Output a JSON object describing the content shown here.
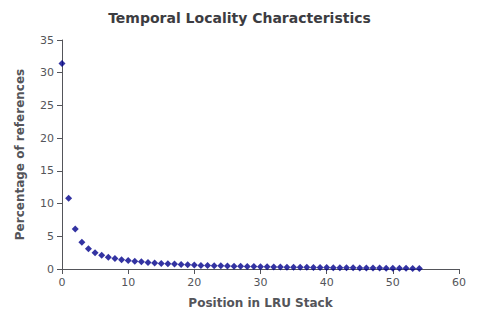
{
  "chart_data": {
    "type": "scatter",
    "title": "Temporal Locality Characteristics",
    "xlabel": "Position in LRU Stack",
    "ylabel": "Percentage of references",
    "x": [
      0,
      1,
      2,
      3,
      4,
      5,
      6,
      7,
      8,
      9,
      10,
      11,
      12,
      13,
      14,
      15,
      16,
      17,
      18,
      19,
      20,
      21,
      22,
      23,
      24,
      25,
      26,
      27,
      28,
      29,
      30,
      31,
      32,
      33,
      34,
      35,
      36,
      37,
      38,
      39,
      40,
      41,
      42,
      43,
      44,
      45,
      46,
      47,
      48,
      49,
      50,
      51,
      52,
      53,
      54
    ],
    "values": [
      31.4,
      10.8,
      6.1,
      4.1,
      3.1,
      2.5,
      2.1,
      1.8,
      1.6,
      1.4,
      1.3,
      1.2,
      1.1,
      1.0,
      0.9,
      0.85,
      0.8,
      0.75,
      0.7,
      0.65,
      0.6,
      0.55,
      0.52,
      0.5,
      0.48,
      0.45,
      0.43,
      0.41,
      0.39,
      0.37,
      0.35,
      0.33,
      0.31,
      0.3,
      0.28,
      0.27,
      0.26,
      0.25,
      0.24,
      0.23,
      0.22,
      0.21,
      0.2,
      0.19,
      0.18,
      0.17,
      0.16,
      0.15,
      0.14,
      0.13,
      0.12,
      0.11,
      0.1,
      0.09,
      0.08
    ],
    "color": "#00008B",
    "marker": "diamond",
    "xlim": [
      0,
      60
    ],
    "ylim": [
      0,
      35
    ],
    "xticks": [
      0,
      10,
      20,
      30,
      40,
      50,
      60
    ],
    "yticks": [
      0,
      5,
      10,
      15,
      20,
      25,
      30,
      35
    ],
    "grid": false
  }
}
